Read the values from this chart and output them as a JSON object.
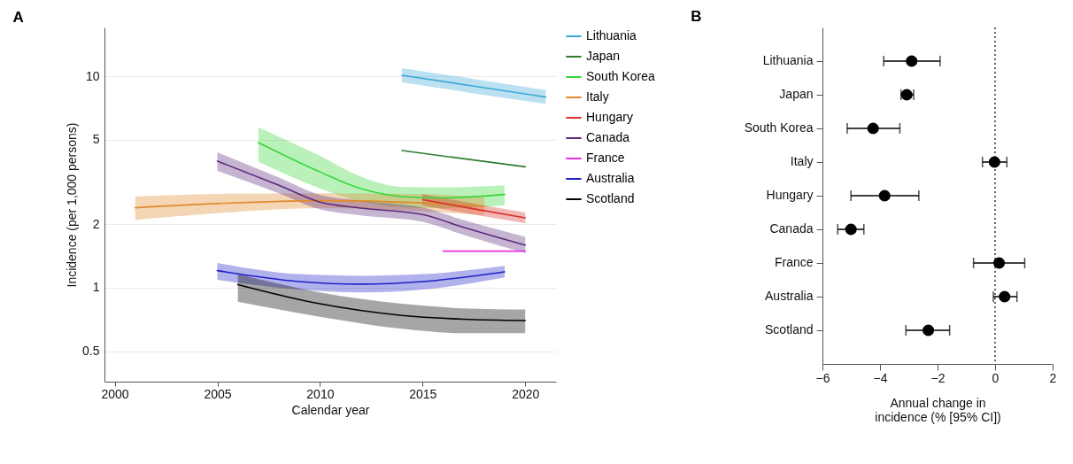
{
  "chart_data": [
    {
      "type": "line",
      "title": "A",
      "xlabel": "Calendar year",
      "ylabel": "Incidence (per 1,000 persons)",
      "log": "y",
      "grid": "y",
      "legend": "right",
      "xlim": [
        1999.5,
        2021.5
      ],
      "xticks": [
        2000,
        2005,
        2010,
        2015,
        2020
      ],
      "ylim": [
        0.36,
        17
      ],
      "yticks": [
        0.5,
        1,
        2,
        5,
        10
      ],
      "series": [
        {
          "name": "Lithuania",
          "color": "#3ba7d8",
          "x": [
            2014,
            2017.5,
            2021
          ],
          "values": [
            10.1,
            8.98,
            7.97
          ],
          "lower": [
            9.35,
            8.3,
            7.4
          ],
          "upper": [
            10.9,
            9.7,
            8.6
          ]
        },
        {
          "name": "Japan",
          "color": "#2e7d32",
          "x": [
            2014,
            2020
          ],
          "values": [
            4.45,
            3.73
          ]
        },
        {
          "name": "South Korea",
          "color": "#39d639",
          "x": [
            2007,
            2010,
            2012,
            2014,
            2016,
            2019
          ],
          "values": [
            4.86,
            3.53,
            2.94,
            2.7,
            2.66,
            2.76
          ],
          "lower": [
            3.94,
            2.95,
            2.55,
            2.4,
            2.38,
            2.45
          ],
          "upper": [
            5.74,
            4.2,
            3.35,
            3.0,
            2.98,
            3.05
          ]
        },
        {
          "name": "Italy",
          "color": "#e08a2c",
          "x": [
            2001,
            2005,
            2010,
            2015,
            2018
          ],
          "values": [
            2.39,
            2.5,
            2.58,
            2.52,
            2.42
          ],
          "lower": [
            2.09,
            2.25,
            2.38,
            2.3,
            2.2
          ],
          "upper": [
            2.7,
            2.78,
            2.8,
            2.77,
            2.68
          ]
        },
        {
          "name": "Hungary",
          "color": "#d9302a",
          "x": [
            2015,
            2017.5,
            2020
          ],
          "values": [
            2.61,
            2.36,
            2.14
          ],
          "lower": [
            2.45,
            2.22,
            2.02
          ],
          "upper": [
            2.78,
            2.5,
            2.27
          ]
        },
        {
          "name": "Canada",
          "color": "#5b2a7c",
          "x": [
            2005,
            2008,
            2010,
            2012,
            2015,
            2017,
            2020
          ],
          "values": [
            3.97,
            3.05,
            2.54,
            2.38,
            2.22,
            1.93,
            1.59
          ],
          "lower": [
            3.57,
            2.8,
            2.35,
            2.2,
            2.05,
            1.78,
            1.46
          ],
          "upper": [
            4.37,
            3.32,
            2.75,
            2.58,
            2.4,
            2.09,
            1.74
          ]
        },
        {
          "name": "France",
          "color": "#e62ee6",
          "x": [
            2016,
            2020
          ],
          "values": [
            1.49,
            1.49
          ]
        },
        {
          "name": "Australia",
          "color": "#1f1fc8",
          "x": [
            2005,
            2009,
            2012,
            2015,
            2019
          ],
          "values": [
            1.205,
            1.07,
            1.04,
            1.07,
            1.19
          ],
          "lower": [
            1.09,
            0.98,
            0.95,
            0.98,
            1.12
          ],
          "upper": [
            1.31,
            1.16,
            1.14,
            1.16,
            1.27
          ]
        },
        {
          "name": "Scotland",
          "color": "#000000",
          "x": [
            2006,
            2010,
            2014,
            2017,
            2020
          ],
          "values": [
            1.035,
            0.84,
            0.74,
            0.71,
            0.7
          ],
          "lower": [
            0.86,
            0.73,
            0.64,
            0.61,
            0.61
          ],
          "upper": [
            1.16,
            0.95,
            0.84,
            0.8,
            0.79
          ]
        }
      ]
    },
    {
      "type": "scatter",
      "title": "B",
      "xlabel": "Annual change in incidence (% [95% CI])",
      "orientation": "horizontal",
      "marker": "circle",
      "categories": [
        "Lithuania",
        "Japan",
        "South Korea",
        "Italy",
        "Hungary",
        "Canada",
        "France",
        "Australia",
        "Scotland"
      ],
      "xlim": [
        -6,
        2
      ],
      "xticks": [
        -6,
        -4,
        -2,
        0,
        2
      ],
      "ref_lines": [
        {
          "axis": "x",
          "value": 0,
          "color": "#333333",
          "line_style": "dotted"
        }
      ],
      "color": "#000000",
      "values": [
        -2.9,
        -3.07,
        -4.24,
        -0.02,
        -3.84,
        -5.01,
        0.14,
        0.33,
        -2.32
      ],
      "errors": [
        [
          -3.87,
          -1.91
        ],
        [
          -3.27,
          -2.83
        ],
        [
          -5.14,
          -3.31
        ],
        [
          -0.44,
          0.41
        ],
        [
          -5.01,
          -2.65
        ],
        [
          -5.47,
          -4.56
        ],
        [
          -0.75,
          1.03
        ],
        [
          -0.06,
          0.76
        ],
        [
          -3.1,
          -1.58
        ]
      ]
    }
  ]
}
